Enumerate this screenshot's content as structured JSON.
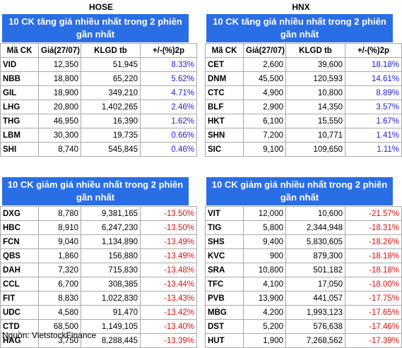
{
  "exchanges": {
    "left": "HOSE",
    "right": "HNX"
  },
  "columns": [
    "Mã CK",
    "Giá(27/07)",
    "KLGD tb",
    "+/-(%)2p"
  ],
  "gainers_title": "10 CK tăng giá nhiều nhất trong 2 phiên gần nhất",
  "losers_title": "10 CK giảm giá nhiều nhất trong 2 phiên gần nhất",
  "hose_gainers": [
    [
      "VID",
      "12,350",
      "51,945",
      "8.33%"
    ],
    [
      "NBB",
      "18,800",
      "65,220",
      "5.62%"
    ],
    [
      "GIL",
      "18,900",
      "349,210",
      "4.71%"
    ],
    [
      "LHG",
      "20,800",
      "1,402,265",
      "2.46%"
    ],
    [
      "THG",
      "46,950",
      "16,390",
      "1.62%"
    ],
    [
      "LBM",
      "30,300",
      "19,735",
      "0.66%"
    ],
    [
      "SHI",
      "8,740",
      "545,845",
      "0.46%"
    ]
  ],
  "hnx_gainers": [
    [
      "CET",
      "2,600",
      "39,600",
      "18.18%"
    ],
    [
      "DNM",
      "45,500",
      "120,593",
      "14.61%"
    ],
    [
      "CTC",
      "4,900",
      "10,800",
      "8.89%"
    ],
    [
      "BLF",
      "2,900",
      "14,350",
      "3.57%"
    ],
    [
      "HKT",
      "6,100",
      "15,550",
      "1.67%"
    ],
    [
      "SHN",
      "7,200",
      "10,771",
      "1.41%"
    ],
    [
      "SIC",
      "9,100",
      "109,650",
      "1.11%"
    ]
  ],
  "hose_losers": [
    [
      "DXG",
      "8,780",
      "9,381,165",
      "-13.50%"
    ],
    [
      "HBC",
      "8,910",
      "6,247,230",
      "-13.50%"
    ],
    [
      "FCN",
      "9,040",
      "1,134,890",
      "-13.49%"
    ],
    [
      "QBS",
      "1,860",
      "156,880",
      "-13.49%"
    ],
    [
      "DAH",
      "7,320",
      "715,830",
      "-13.48%"
    ],
    [
      "CCL",
      "6,700",
      "308,385",
      "-13.44%"
    ],
    [
      "FIT",
      "8,830",
      "1,022,830",
      "-13.43%"
    ],
    [
      "UDC",
      "4,580",
      "91,470",
      "-13.42%"
    ],
    [
      "CTD",
      "68,500",
      "1,149,105",
      "-13.40%"
    ],
    [
      "HAG",
      "3,750",
      "8,288,445",
      "-13.39%"
    ]
  ],
  "hnx_losers": [
    [
      "VIT",
      "12,000",
      "10,600",
      "-21.57%"
    ],
    [
      "TIG",
      "5,800",
      "2,344,948",
      "-18.31%"
    ],
    [
      "SHS",
      "9,400",
      "5,830,605",
      "-18.26%"
    ],
    [
      "KVC",
      "900",
      "879,300",
      "-18.18%"
    ],
    [
      "SRA",
      "10,800",
      "501,182",
      "-18.18%"
    ],
    [
      "TFC",
      "4,100",
      "17,050",
      "-18.00%"
    ],
    [
      "PVB",
      "13,900",
      "441,057",
      "-17.75%"
    ],
    [
      "MBG",
      "4,200",
      "1,993,123",
      "-17.65%"
    ],
    [
      "DST",
      "5,200",
      "576,638",
      "-17.46%"
    ],
    [
      "HUT",
      "1,900",
      "7,268,562",
      "-17.39%"
    ]
  ],
  "colors": {
    "header_bg": "#2a6ee6",
    "positive": "#2323d6",
    "negative": "#e01010"
  },
  "footer": "Nguồn: VietstockFinance"
}
